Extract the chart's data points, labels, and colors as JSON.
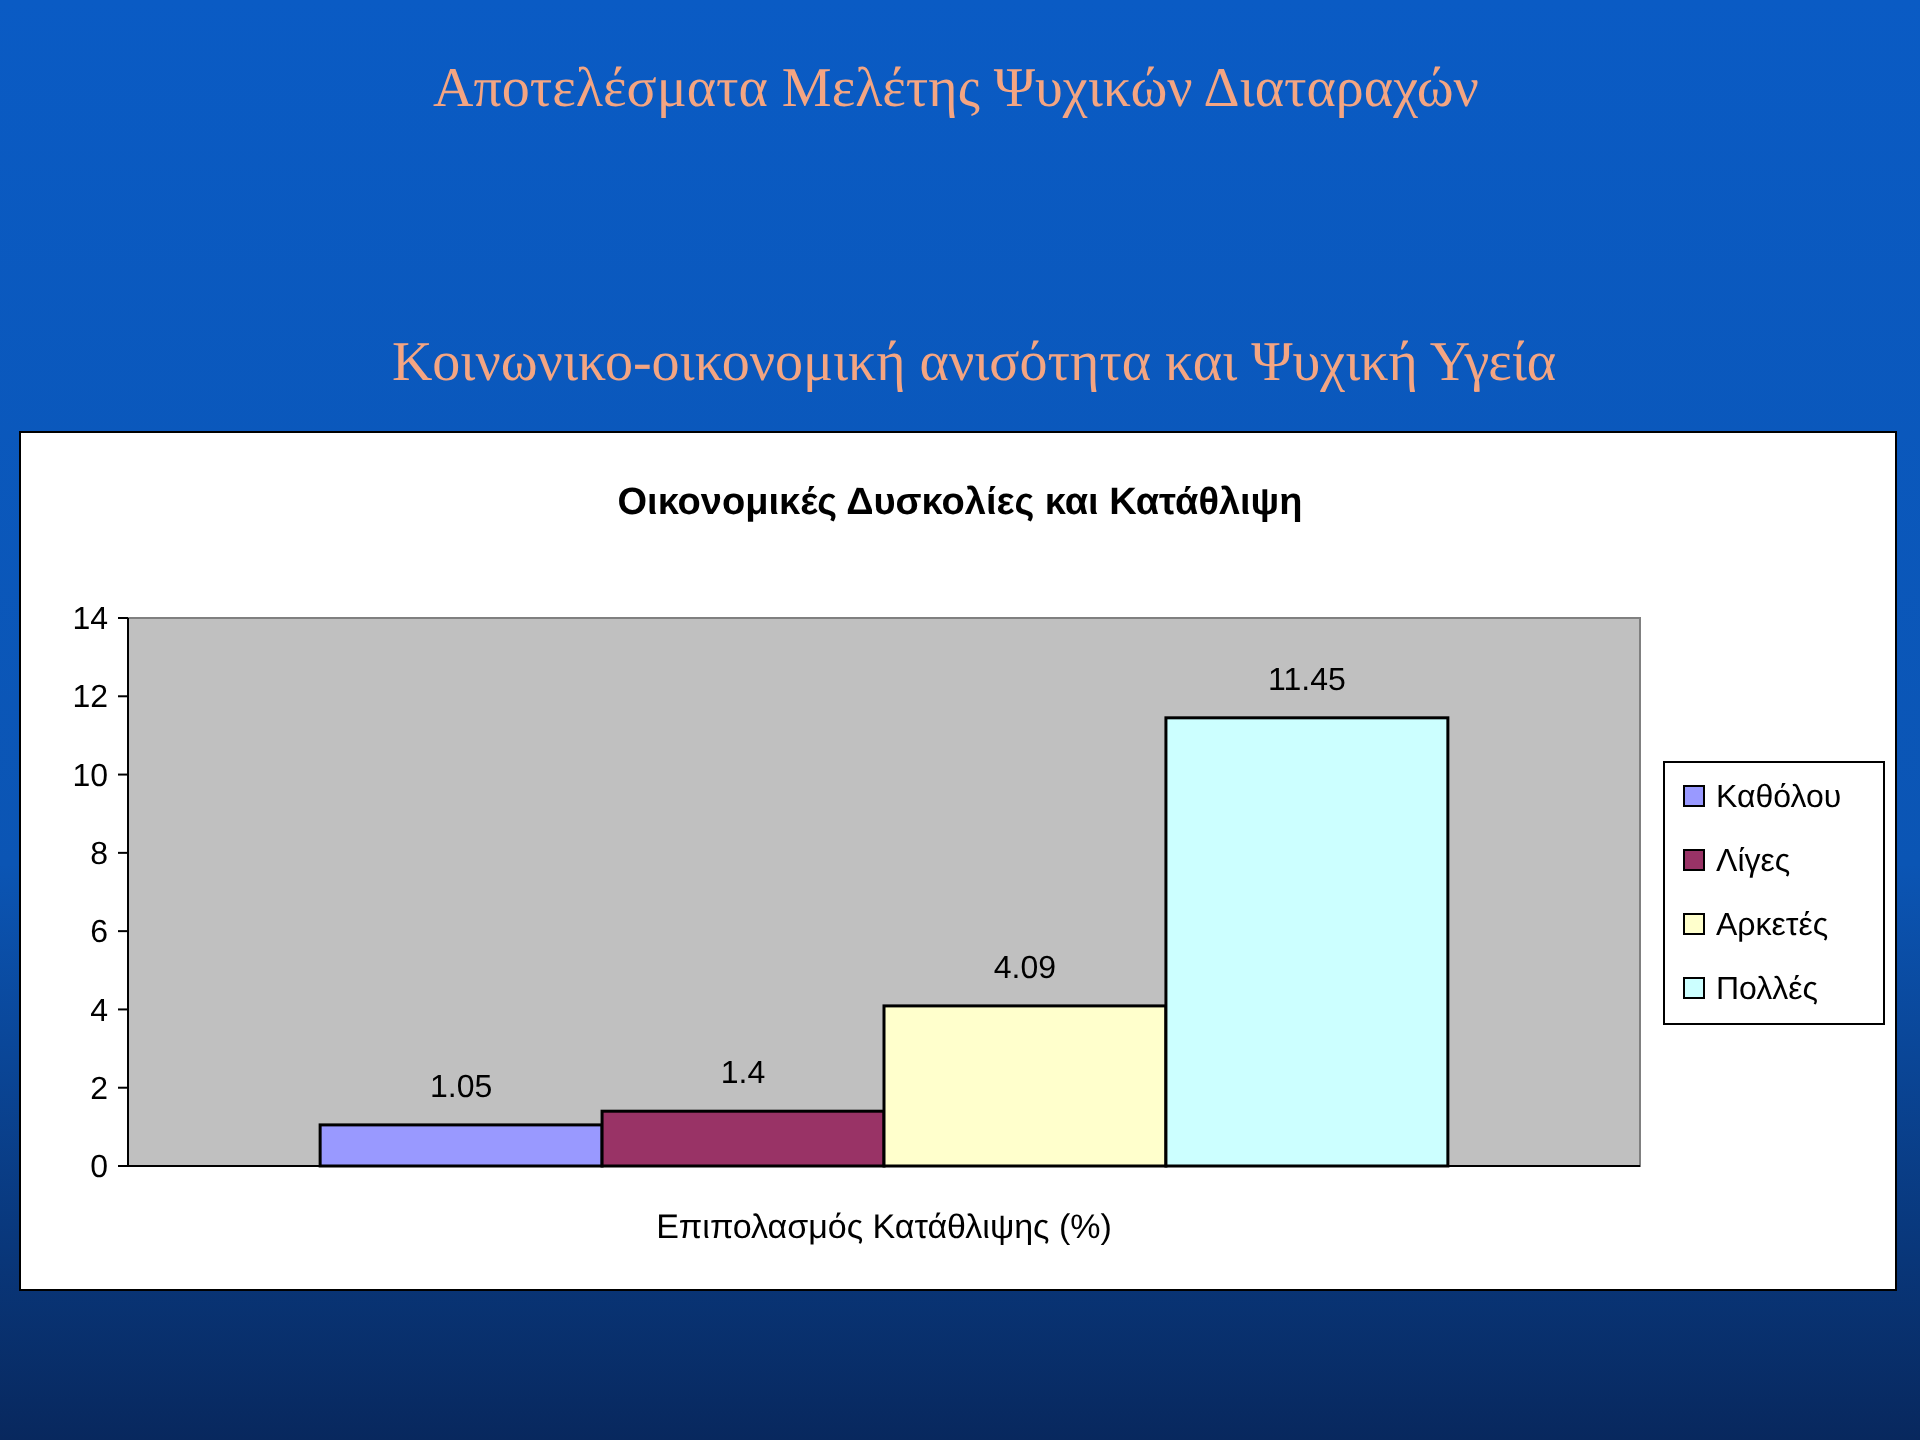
{
  "chart_data": {
    "type": "bar",
    "title": "Οικονομικές Δυσκολίες και Κατάθλιψη",
    "xlabel": "Επιπολασμός Κατάθλιψης (%)",
    "annotations": [
      "Αποτελέσματα Μελέτης Ψυχικών Διαταραχών",
      "Κοινωνικο-οικονομική ανισότητα και Ψυχική Υγεία"
    ],
    "categories": [
      null
    ],
    "series": [
      {
        "name": "Καθόλου",
        "color": "#9999ff",
        "values": [
          1.05
        ]
      },
      {
        "name": "Λίγες",
        "color": "#993366",
        "values": [
          1.4
        ]
      },
      {
        "name": "Αρκετές",
        "color": "#ffffcc",
        "values": [
          4.09
        ]
      },
      {
        "name": "Πολλές",
        "color": "#ccffff",
        "values": [
          11.45
        ]
      }
    ],
    "ylim": [
      0,
      14
    ],
    "yticks": [
      0,
      2,
      4,
      6,
      8,
      10,
      12,
      14
    ],
    "grid": false,
    "legend": "right",
    "data_labels": true
  }
}
